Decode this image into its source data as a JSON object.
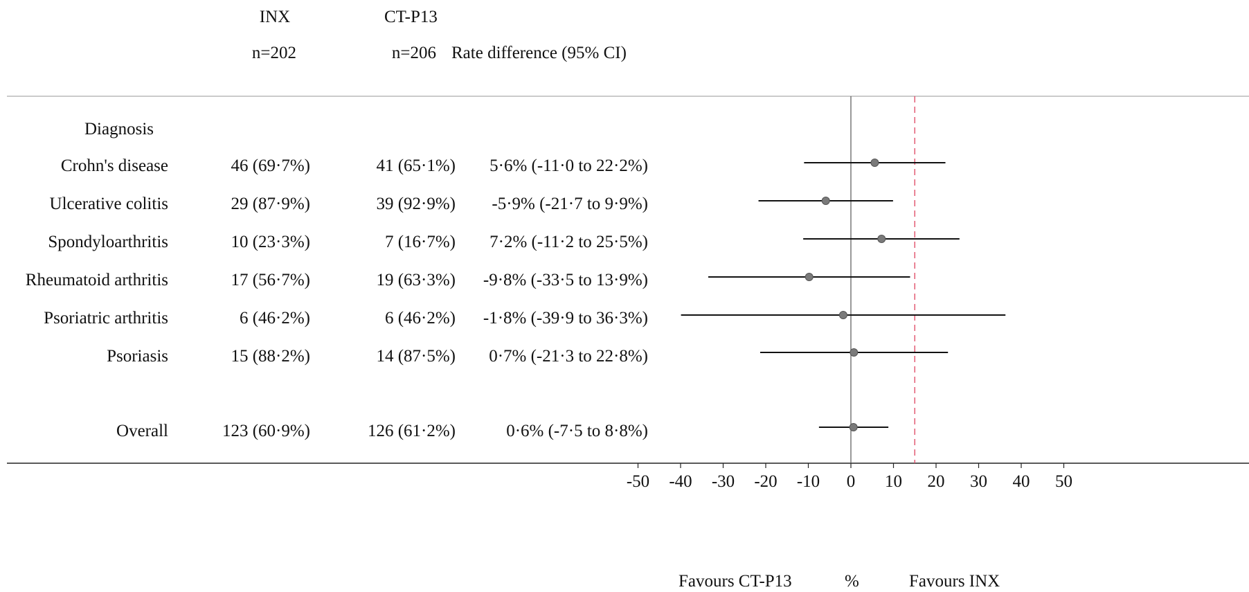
{
  "columns": {
    "inx": {
      "name": "INX",
      "n": "n=202"
    },
    "ctp13": {
      "name": "CT-P13",
      "n": "n=206"
    },
    "diff": "Rate difference (95% CI)"
  },
  "section_label": "Diagnosis",
  "rows": [
    {
      "label": "Crohn's disease",
      "inx": "46 (69·7%)",
      "ctp13": "41 (65·1%)",
      "diff": "5·6% (-11·0 to 22·2%)"
    },
    {
      "label": "Ulcerative colitis",
      "inx": "29 (87·9%)",
      "ctp13": "39 (92·9%)",
      "diff": "-5·9% (-21·7 to 9·9%)"
    },
    {
      "label": "Spondyloarthritis",
      "inx": "10 (23·3%)",
      "ctp13": "7 (16·7%)",
      "diff": "7·2% (-11·2 to 25·5%)"
    },
    {
      "label": "Rheumatoid arthritis",
      "inx": "17 (56·7%)",
      "ctp13": "19 (63·3%)",
      "diff": "-9·8% (-33·5 to 13·9%)"
    },
    {
      "label": "Psoriatric arthritis",
      "inx": "6 (46·2%)",
      "ctp13": "6 (46·2%)",
      "diff": "-1·8% (-39·9 to 36·3%)"
    },
    {
      "label": "Psoriasis",
      "inx": "15 (88·2%)",
      "ctp13": "14 (87·5%)",
      "diff": "0·7% (-21·3 to 22·8%)"
    }
  ],
  "overall": {
    "label": "Overall",
    "inx": "123 (60·9%)",
    "ctp13": "126 (61·2%)",
    "diff": "0·6% (-7·5 to 8·8%)"
  },
  "axis": {
    "xlabel": "%",
    "favours_left": "Favours CT-P13",
    "favours_right": "Favours INX"
  },
  "chart_data": {
    "type": "forest",
    "xlim": [
      -50,
      50
    ],
    "ticks": [
      -50,
      -40,
      -30,
      -20,
      -10,
      0,
      10,
      20,
      30,
      40,
      50
    ],
    "reference_line": 0,
    "margin_line": 15,
    "colors": {
      "point": "#7a7a7a",
      "ci": "#111111",
      "margin": "#e0506a",
      "axis": "#555555"
    },
    "series": [
      {
        "name": "Crohn's disease",
        "estimate": 5.6,
        "lower": -11.0,
        "upper": 22.2
      },
      {
        "name": "Ulcerative colitis",
        "estimate": -5.9,
        "lower": -21.7,
        "upper": 9.9
      },
      {
        "name": "Spondyloarthritis",
        "estimate": 7.2,
        "lower": -11.2,
        "upper": 25.5
      },
      {
        "name": "Rheumatoid arthritis",
        "estimate": -9.8,
        "lower": -33.5,
        "upper": 13.9
      },
      {
        "name": "Psoriatric arthritis",
        "estimate": -1.8,
        "lower": -39.9,
        "upper": 36.3
      },
      {
        "name": "Psoriasis",
        "estimate": 0.7,
        "lower": -21.3,
        "upper": 22.8
      },
      {
        "name": "Overall",
        "estimate": 0.6,
        "lower": -7.5,
        "upper": 8.8
      }
    ]
  }
}
